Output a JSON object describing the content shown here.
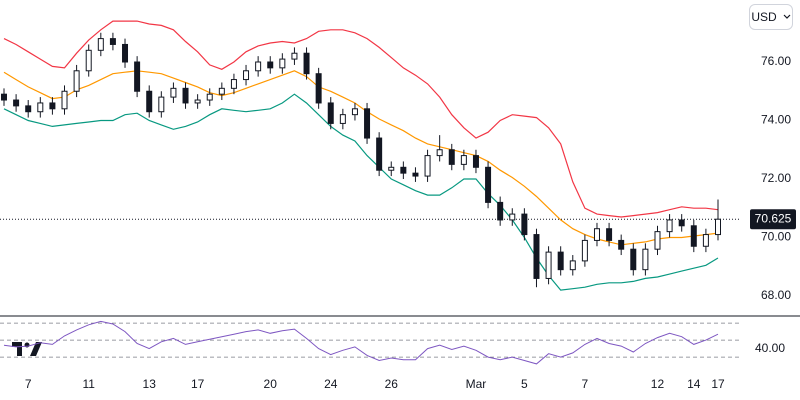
{
  "currency": "USD",
  "chart_data": {
    "type": "candlestick",
    "categories": [
      null,
      null,
      "7",
      null,
      null,
      null,
      null,
      "11",
      null,
      null,
      null,
      null,
      "13",
      null,
      null,
      null,
      "17",
      null,
      null,
      null,
      null,
      null,
      "20",
      null,
      null,
      null,
      null,
      "24",
      null,
      null,
      null,
      null,
      "26",
      null,
      null,
      null,
      null,
      null,
      null,
      "Mar",
      null,
      null,
      null,
      "5",
      null,
      null,
      null,
      null,
      "7",
      null,
      null,
      null,
      null,
      null,
      "12",
      null,
      null,
      "14",
      null,
      "17"
    ],
    "open": [
      74.9,
      74.7,
      74.5,
      74.3,
      74.6,
      74.4,
      75.0,
      75.7,
      76.4,
      76.8,
      76.6,
      76.0,
      75.0,
      74.3,
      74.8,
      75.1,
      74.6,
      74.7,
      74.9,
      75.1,
      75.4,
      75.7,
      76.0,
      75.8,
      76.1,
      76.3,
      75.6,
      74.6,
      73.9,
      74.2,
      74.4,
      73.4,
      72.3,
      72.4,
      72.2,
      72.1,
      72.8,
      73.0,
      72.5,
      72.8,
      72.4,
      71.2,
      70.6,
      70.8,
      70.1,
      68.6,
      69.5,
      68.9,
      69.2,
      69.9,
      70.3,
      69.9,
      69.6,
      68.9,
      69.6,
      70.2,
      70.6,
      70.4,
      69.7,
      70.1
    ],
    "high": [
      75.1,
      74.9,
      74.7,
      74.8,
      74.8,
      75.2,
      75.9,
      76.6,
      77.0,
      77.0,
      76.8,
      76.2,
      75.2,
      75.0,
      75.3,
      75.3,
      74.9,
      75.1,
      75.3,
      75.6,
      75.9,
      76.2,
      76.2,
      76.3,
      76.5,
      76.5,
      75.8,
      74.8,
      74.4,
      74.6,
      74.6,
      73.6,
      72.6,
      72.6,
      72.4,
      73.0,
      73.5,
      73.2,
      73.0,
      73.0,
      72.6,
      71.4,
      71.0,
      71.0,
      70.3,
      69.7,
      69.7,
      69.4,
      70.1,
      70.5,
      70.5,
      70.1,
      69.8,
      69.8,
      70.4,
      70.8,
      70.8,
      70.6,
      70.3,
      71.3
    ],
    "low": [
      74.5,
      74.3,
      74.1,
      74.1,
      74.2,
      74.2,
      74.8,
      75.5,
      76.2,
      76.4,
      75.8,
      74.8,
      74.1,
      74.1,
      74.6,
      74.4,
      74.4,
      74.5,
      74.7,
      74.9,
      75.2,
      75.5,
      75.6,
      75.6,
      75.9,
      75.4,
      74.4,
      73.7,
      73.7,
      74.0,
      73.2,
      72.1,
      72.1,
      72.0,
      71.9,
      71.9,
      72.6,
      72.3,
      72.3,
      72.2,
      71.0,
      70.4,
      70.4,
      69.9,
      68.3,
      68.4,
      68.7,
      68.7,
      69.0,
      69.7,
      69.7,
      69.4,
      68.7,
      68.7,
      69.4,
      70.0,
      70.2,
      69.5,
      69.5,
      69.9
    ],
    "close": [
      74.7,
      74.5,
      74.3,
      74.6,
      74.4,
      75.0,
      75.7,
      76.4,
      76.8,
      76.6,
      76.0,
      75.0,
      74.3,
      74.8,
      75.1,
      74.6,
      74.7,
      74.9,
      75.1,
      75.4,
      75.7,
      76.0,
      75.8,
      76.1,
      76.3,
      75.6,
      74.6,
      73.9,
      74.2,
      74.4,
      73.4,
      72.3,
      72.4,
      72.2,
      72.1,
      72.8,
      73.0,
      72.5,
      72.8,
      72.4,
      71.2,
      70.6,
      70.8,
      70.1,
      68.6,
      69.5,
      68.9,
      69.2,
      69.9,
      70.3,
      69.9,
      69.6,
      68.9,
      69.6,
      70.2,
      70.6,
      70.4,
      69.7,
      70.1,
      70.625
    ],
    "up_color": "#ffffff",
    "down_color": "#131722",
    "wick_color": "#131722",
    "bands": {
      "upper": {
        "color": "#f23645",
        "values": [
          76.8,
          76.6,
          76.35,
          76.1,
          75.85,
          75.8,
          76.3,
          76.75,
          77.1,
          77.4,
          77.4,
          77.4,
          77.3,
          77.25,
          77.1,
          76.7,
          76.35,
          75.9,
          75.75,
          76.0,
          76.35,
          76.55,
          76.65,
          76.7,
          76.65,
          76.8,
          77.05,
          77.1,
          77.1,
          77.0,
          76.8,
          76.5,
          76.15,
          75.8,
          75.55,
          75.25,
          74.8,
          74.2,
          73.75,
          73.4,
          73.6,
          74.0,
          74.2,
          74.15,
          74.1,
          73.75,
          73.2,
          71.9,
          71.0,
          70.8,
          70.75,
          70.7,
          70.75,
          70.8,
          70.85,
          70.95,
          71.05,
          71.0,
          71.0,
          70.95
        ]
      },
      "middle": {
        "color": "#ff9800",
        "values": [
          75.65,
          75.4,
          75.15,
          74.95,
          74.75,
          74.8,
          75.05,
          75.2,
          75.4,
          75.6,
          75.65,
          75.7,
          75.65,
          75.6,
          75.45,
          75.3,
          75.15,
          74.95,
          74.85,
          74.95,
          75.1,
          75.25,
          75.4,
          75.55,
          75.7,
          75.5,
          75.15,
          75.0,
          74.8,
          74.6,
          74.3,
          74.05,
          73.85,
          73.65,
          73.4,
          73.2,
          73.1,
          73.0,
          72.9,
          72.8,
          72.6,
          72.3,
          72.05,
          71.75,
          71.4,
          71.0,
          70.6,
          70.3,
          70.1,
          69.95,
          69.85,
          69.75,
          69.8,
          69.85,
          69.95,
          70.0,
          70.0,
          70.05,
          70.1,
          70.15
        ]
      },
      "lower": {
        "color": "#089981",
        "values": [
          74.4,
          74.2,
          74.0,
          73.9,
          73.8,
          73.85,
          73.9,
          73.95,
          74.0,
          74.0,
          74.2,
          74.25,
          74.0,
          73.85,
          73.7,
          73.8,
          73.95,
          74.2,
          74.4,
          74.35,
          74.3,
          74.35,
          74.4,
          74.6,
          74.9,
          74.6,
          74.2,
          73.8,
          73.5,
          73.3,
          72.8,
          72.4,
          72.0,
          71.8,
          71.6,
          71.45,
          71.45,
          71.7,
          72.0,
          72.0,
          71.5,
          71.1,
          70.6,
          70.0,
          69.3,
          68.7,
          68.2,
          68.25,
          68.3,
          68.4,
          68.45,
          68.45,
          68.5,
          68.6,
          68.65,
          68.75,
          68.85,
          68.95,
          69.05,
          69.3
        ]
      }
    },
    "ylim": [
      67.35,
      78.12
    ],
    "yticks": [
      {
        "value": 68,
        "label": "68.00"
      },
      {
        "value": 70,
        "label": "70.00"
      },
      {
        "value": 72,
        "label": "72.00"
      },
      {
        "value": 74,
        "label": "74.00"
      },
      {
        "value": 76,
        "label": "76.00"
      }
    ],
    "last_price": 70.625,
    "last_price_color": "#131722",
    "rsi": {
      "color": "#7e57c2",
      "values": [
        44,
        42,
        43,
        47,
        45,
        55,
        62,
        68,
        72,
        69,
        60,
        46,
        40,
        48,
        52,
        45,
        48,
        51,
        54,
        57,
        60,
        62,
        58,
        61,
        63,
        52,
        40,
        33,
        38,
        42,
        32,
        26,
        29,
        27,
        27,
        40,
        44,
        39,
        43,
        38,
        30,
        27,
        30,
        26,
        22,
        34,
        30,
        35,
        45,
        52,
        46,
        43,
        36,
        46,
        53,
        58,
        54,
        45,
        50,
        57
      ],
      "ylim": [
        9,
        76
      ],
      "yticks": [
        {
          "value": 40,
          "label": "40.00"
        }
      ],
      "levels": [
        70,
        50,
        30
      ]
    }
  }
}
